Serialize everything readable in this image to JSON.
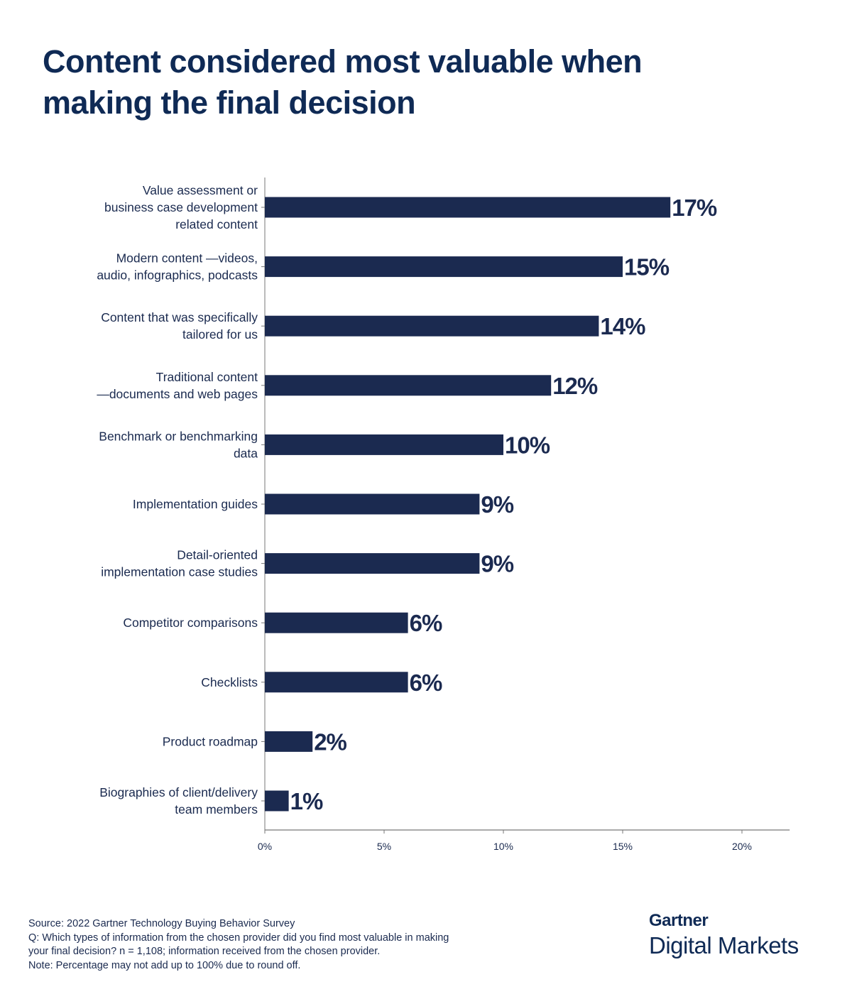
{
  "chart_data": {
    "type": "bar",
    "orientation": "horizontal",
    "title": "Content considered most valuable when making the final decision",
    "categories": [
      [
        "Value assessment or",
        "business case development",
        "related content"
      ],
      [
        "Modern content —videos,",
        "audio, infographics, podcasts"
      ],
      [
        "Content that was specifically",
        "tailored for us"
      ],
      [
        "Traditional content",
        "—documents and web pages"
      ],
      [
        "Benchmark or benchmarking",
        "data"
      ],
      [
        "Implementation guides"
      ],
      [
        "Detail-oriented",
        "implementation case studies"
      ],
      [
        "Competitor comparisons"
      ],
      [
        "Checklists"
      ],
      [
        "Product roadmap"
      ],
      [
        "Biographies of client/delivery",
        "team members"
      ]
    ],
    "values": [
      17,
      15,
      14,
      12,
      10,
      9,
      9,
      6,
      6,
      2,
      1
    ],
    "data_labels": [
      "17%",
      "15%",
      "14%",
      "12%",
      "10%",
      "9%",
      "9%",
      "6%",
      "6%",
      "2%",
      "1%"
    ],
    "xlim": [
      0,
      22
    ],
    "x_ticks": [
      0,
      5,
      10,
      15,
      20
    ],
    "x_tick_labels": [
      "0%",
      "5%",
      "10%",
      "15%",
      "20%"
    ],
    "xlabel": "",
    "ylabel": "",
    "grid": false,
    "bar_color": "#1b2a50"
  },
  "footer": {
    "lines": [
      "Source: 2022 Gartner Technology Buying Behavior Survey",
      "Q: Which types of information from the chosen provider did you find most valuable in making",
      "your final decision? n = 1,108; information received from the chosen provider.",
      "Note: Percentage may not add up to 100% due to round off."
    ]
  },
  "logo": {
    "brand": "Gartner",
    "product": "Digital Markets"
  }
}
